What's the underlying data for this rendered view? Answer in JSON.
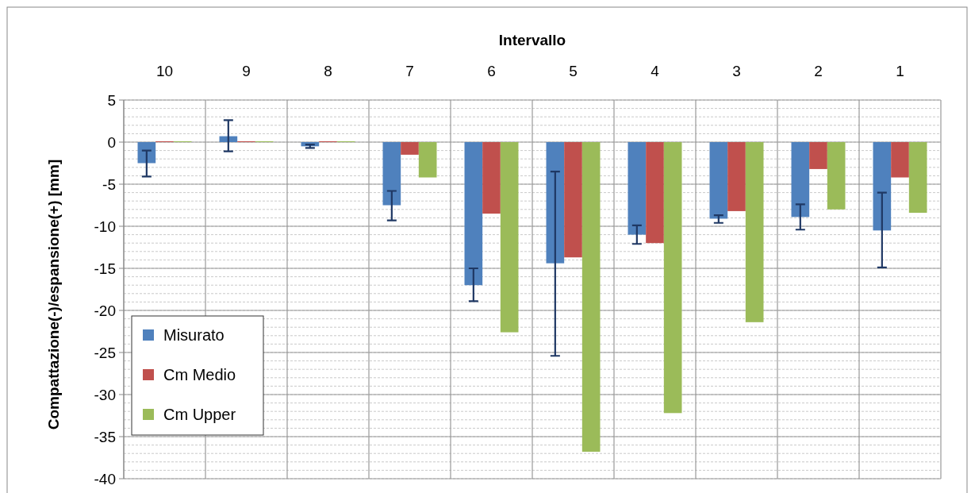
{
  "chart_data": {
    "type": "bar",
    "xlabel": "Intervallo",
    "ylabel": "Compattazione(-)/espansione(+)  [mm]",
    "categories": [
      "10",
      "9",
      "8",
      "7",
      "6",
      "5",
      "4",
      "3",
      "2",
      "1"
    ],
    "series": [
      {
        "name": "Misurato",
        "color": "#4f81bd",
        "values": [
          -2.5,
          0.7,
          -0.5,
          -7.5,
          -17.0,
          -14.4,
          -11.0,
          -9.1,
          -8.9,
          -10.5
        ],
        "errors": [
          [
            -4.1,
            -1.0
          ],
          [
            -1.1,
            2.6
          ],
          [
            -0.7,
            -0.3
          ],
          [
            -9.3,
            -5.8
          ],
          [
            -18.9,
            -15.0
          ],
          [
            -25.4,
            -3.5
          ],
          [
            -12.1,
            -9.9
          ],
          [
            -9.6,
            -8.7
          ],
          [
            -10.4,
            -7.4
          ],
          [
            -14.9,
            -6.0
          ]
        ]
      },
      {
        "name": "Cm Medio",
        "color": "#c0504d",
        "values": [
          0.1,
          0.1,
          0.1,
          -1.5,
          -8.5,
          -13.7,
          -12.0,
          -8.2,
          -3.2,
          -4.2
        ]
      },
      {
        "name": "Cm Upper",
        "color": "#9bbb59",
        "values": [
          0.1,
          0.1,
          0.1,
          -4.2,
          -22.6,
          -36.8,
          -32.2,
          -21.4,
          -8.0,
          -8.4
        ]
      }
    ],
    "ylim": [
      -40,
      5
    ],
    "yticks": [
      5,
      0,
      -5,
      -10,
      -15,
      -20,
      -25,
      -30,
      -35,
      -40
    ],
    "grid": true,
    "legend": "bottom left"
  }
}
